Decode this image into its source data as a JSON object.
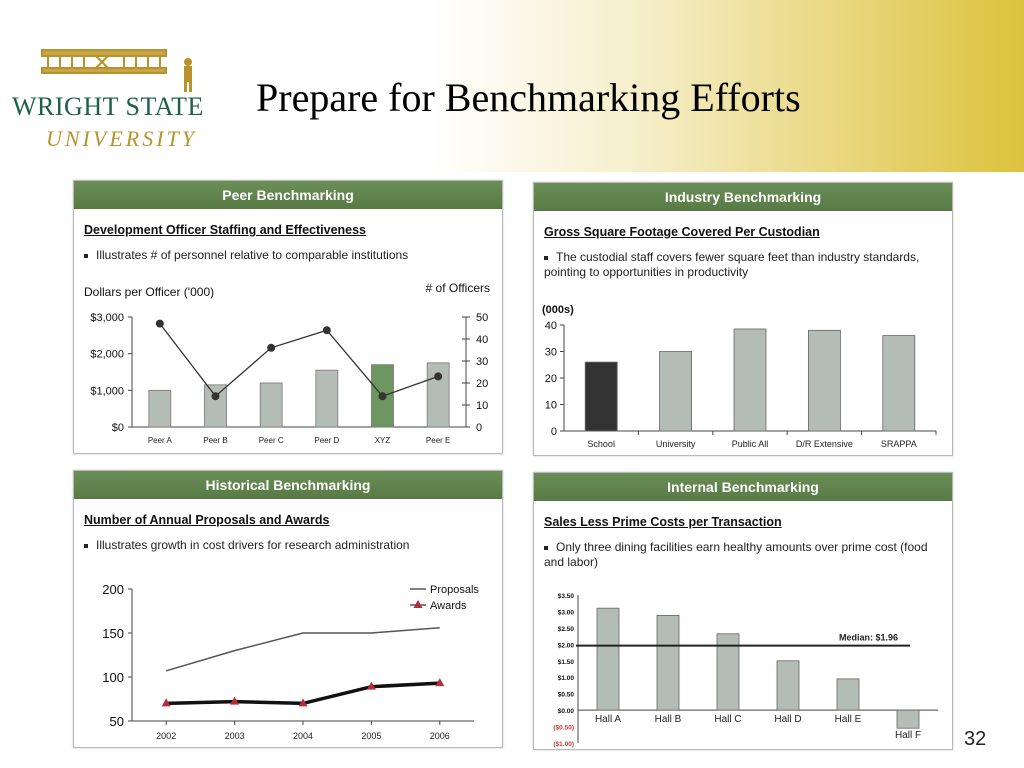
{
  "slide": {
    "title": "Prepare for Benchmarking Efforts",
    "page_number": "32"
  },
  "logo": {
    "line1": "WRIGHT STATE",
    "line2": "UNIVERSITY"
  },
  "panels": {
    "peer": {
      "header": "Peer Benchmarking",
      "title": "Development Officer Staffing and Effectiveness",
      "bullet": "Illustrates # of personnel relative to comparable institutions",
      "left_axis_label": "Dollars per Officer ('000)",
      "right_axis_label": "# of Officers"
    },
    "industry": {
      "header": "Industry Benchmarking",
      "title": "Gross Square Footage Covered Per Custodian",
      "bullet": "The custodial staff covers fewer square feet than industry standards, pointing to opportunities in productivity",
      "axis_unit": "(000s)"
    },
    "historical": {
      "header": "Historical Benchmarking",
      "title": "Number of Annual Proposals and Awards",
      "bullet": "Illustrates growth in cost drivers for research administration"
    },
    "internal": {
      "header": "Internal Benchmarking",
      "title": "Sales Less Prime Costs per Transaction",
      "bullet": "Only three dining facilities earn healthy amounts over prime cost (food and labor)",
      "median_label": "Median: $1.96"
    }
  },
  "colors": {
    "header_green": "#5f8249",
    "bar_gray": "#b4bcb6",
    "bar_highlight": "#6e9660",
    "bar_dark": "#333333",
    "awards_red": "#b0303a"
  },
  "chart_data": [
    {
      "type": "bar",
      "id": "peer",
      "categories": [
        "Peer A",
        "Peer B",
        "Peer C",
        "Peer D",
        "XYZ",
        "Peer E"
      ],
      "series": [
        {
          "values": [
            1000,
            1150,
            1200,
            1550,
            1700,
            1750
          ]
        },
        {
          "values": [
            47,
            14,
            36,
            44,
            14,
            23
          ]
        }
      ],
      "ylim": [
        0,
        3000
      ],
      "yticks": [
        "$0",
        "$1,000",
        "$2,000",
        "$3,000"
      ],
      "y2lim": [
        0,
        50
      ],
      "y2ticks": [
        "0",
        "10",
        "20",
        "30",
        "40",
        "50"
      ],
      "highlight": "XYZ"
    },
    {
      "type": "bar",
      "id": "industry",
      "categories": [
        "School",
        "University",
        "Public All",
        "D/R Extensive",
        "SRAPPA"
      ],
      "values": [
        26,
        30,
        38.5,
        38,
        36
      ],
      "ylim": [
        0,
        40
      ],
      "yticks": [
        "0",
        "10",
        "20",
        "30",
        "40"
      ]
    },
    {
      "type": "line",
      "id": "historical",
      "x": [
        "2002",
        "2003",
        "2004",
        "2005",
        "2006"
      ],
      "series": [
        {
          "name": "Proposals",
          "values": [
            107,
            130,
            150,
            150,
            156
          ]
        },
        {
          "name": "Awards",
          "values": [
            70,
            72,
            70,
            89,
            93
          ]
        }
      ],
      "ylim": [
        50,
        200
      ],
      "yticks": [
        "50",
        "100",
        "150",
        "200"
      ]
    },
    {
      "type": "bar",
      "id": "internal",
      "categories": [
        "Hall A",
        "Hall B",
        "Hall C",
        "Hall D",
        "Hall E",
        "Hall F"
      ],
      "values": [
        3.1,
        2.88,
        2.32,
        1.5,
        0.95,
        -0.55
      ],
      "ylim": [
        -1.0,
        3.5
      ],
      "yticks": [
        "($1.00)",
        "($0.50)",
        "$0.00",
        "$0.50",
        "$1.00",
        "$1.50",
        "$2.00",
        "$2.50",
        "$3.00",
        "$3.50"
      ],
      "median": 1.96
    }
  ]
}
